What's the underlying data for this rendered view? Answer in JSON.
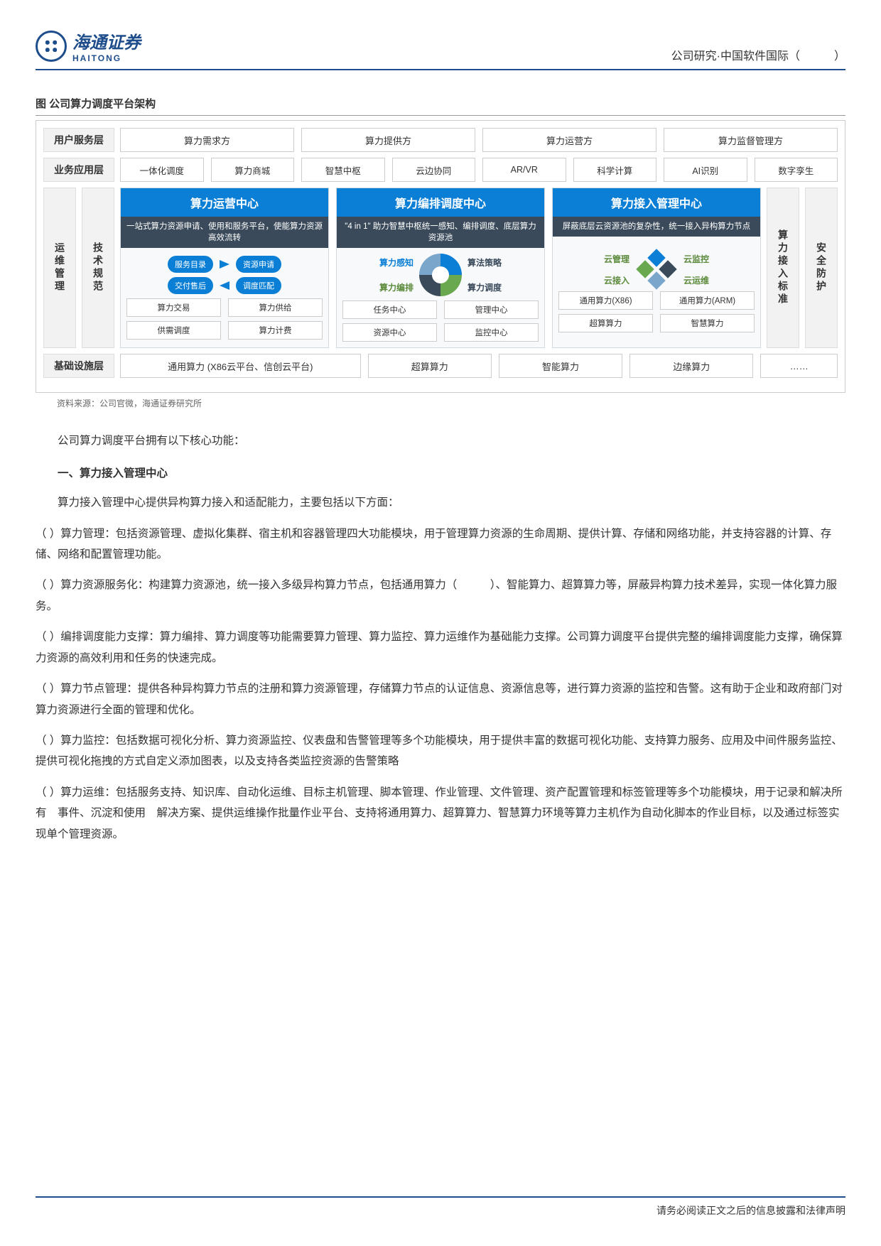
{
  "header": {
    "logo_cn": "海通证券",
    "logo_en": "HAITONG",
    "right": "公司研究·中国软件国际（　　　）"
  },
  "fig": {
    "title": "图  公司算力调度平台架构",
    "source": "资料来源：公司官微，海通证券研究所"
  },
  "layers": {
    "user": {
      "label": "用户服务层",
      "cells": [
        "算力需求方",
        "算力提供方",
        "算力运营方",
        "算力监督管理方"
      ]
    },
    "app": {
      "label": "业务应用层",
      "cells": [
        "一体化调度",
        "算力商城",
        "智慧中枢",
        "云边协同",
        "AR/VR",
        "科学计算",
        "AI识别",
        "数字孪生"
      ]
    },
    "infra": {
      "label": "基础设施层",
      "cells": [
        "通用算力 (X86云平台、信创云平台)",
        "超算算力",
        "智能算力",
        "边缘算力",
        "……"
      ]
    }
  },
  "mid": {
    "left1": "运维管理",
    "left2": "技术规范",
    "right1": "算力接入标准",
    "right2": "安全防护",
    "cards": [
      {
        "head": "算力运营中心",
        "sub": "一站式算力资源申请、使用和服务平台，使能算力资源高效流转",
        "pills": [
          "服务目录",
          "资源申请",
          "交付售后",
          "调度匹配"
        ],
        "minis": [
          [
            "算力交易",
            "算力供给"
          ],
          [
            "供需调度",
            "算力计费"
          ]
        ]
      },
      {
        "head": "算力编排调度中心",
        "sub": "\"4 in 1\" 助力智慧中枢统一感知、编排调度、底层算力资源池",
        "quad": {
          "tl": "算力感知",
          "tr": "算法策略",
          "bl": "算力编排",
          "br": "算力调度"
        },
        "minis": [
          [
            "任务中心",
            "管理中心"
          ],
          [
            "资源中心",
            "监控中心"
          ]
        ]
      },
      {
        "head": "算力接入管理中心",
        "sub": "屏蔽底层云资源池的复杂性，统一接入异构算力节点",
        "grid": {
          "tl": "云管理",
          "tr": "云监控",
          "bl": "云接入",
          "br": "云运维"
        },
        "minis": [
          [
            "通用算力(X86)",
            "通用算力(ARM)"
          ],
          [
            "超算算力",
            "智慧算力"
          ]
        ]
      }
    ]
  },
  "body": {
    "intro": "公司算力调度平台拥有以下核心功能：",
    "h1": "一、算力接入管理中心",
    "p1": "算力接入管理中心提供异构算力接入和适配能力，主要包括以下方面：",
    "p2": "（ ）算力管理：包括资源管理、虚拟化集群、宿主机和容器管理四大功能模块，用于管理算力资源的生命周期、提供计算、存储和网络功能，并支持容器的计算、存储、网络和配置管理功能。",
    "p3": "（ ）算力资源服务化：构建算力资源池，统一接入多级异构算力节点，包括通用算力（　　　）、智能算力、超算算力等，屏蔽异构算力技术差异，实现一体化算力服务。",
    "p4": "（ ）编排调度能力支撑：算力编排、算力调度等功能需要算力管理、算力监控、算力运维作为基础能力支撑。公司算力调度平台提供完整的编排调度能力支撑，确保算力资源的高效利用和任务的快速完成。",
    "p5": "（ ）算力节点管理：提供各种异构算力节点的注册和算力资源管理，存储算力节点的认证信息、资源信息等，进行算力资源的监控和告警。这有助于企业和政府部门对算力资源进行全面的管理和优化。",
    "p6": "（ ）算力监控：包括数据可视化分析、算力资源监控、仪表盘和告警管理等多个功能模块，用于提供丰富的数据可视化功能、支持算力服务、应用及中间件服务监控、提供可视化拖拽的方式自定义添加图表，以及支持各类监控资源的告警策略",
    "p7": "（ ）算力运维：包括服务支持、知识库、自动化运维、目标主机管理、脚本管理、作业管理、文件管理、资产配置管理和标签管理等多个功能模块，用于记录和解决所有　事件、沉淀和使用　解决方案、提供运维操作批量作业平台、支持将通用算力、超算算力、智慧算力环境等算力主机作为自动化脚本的作业目标，以及通过标签实现单个管理资源。"
  },
  "footer": "请务必阅读正文之后的信息披露和法律声明"
}
